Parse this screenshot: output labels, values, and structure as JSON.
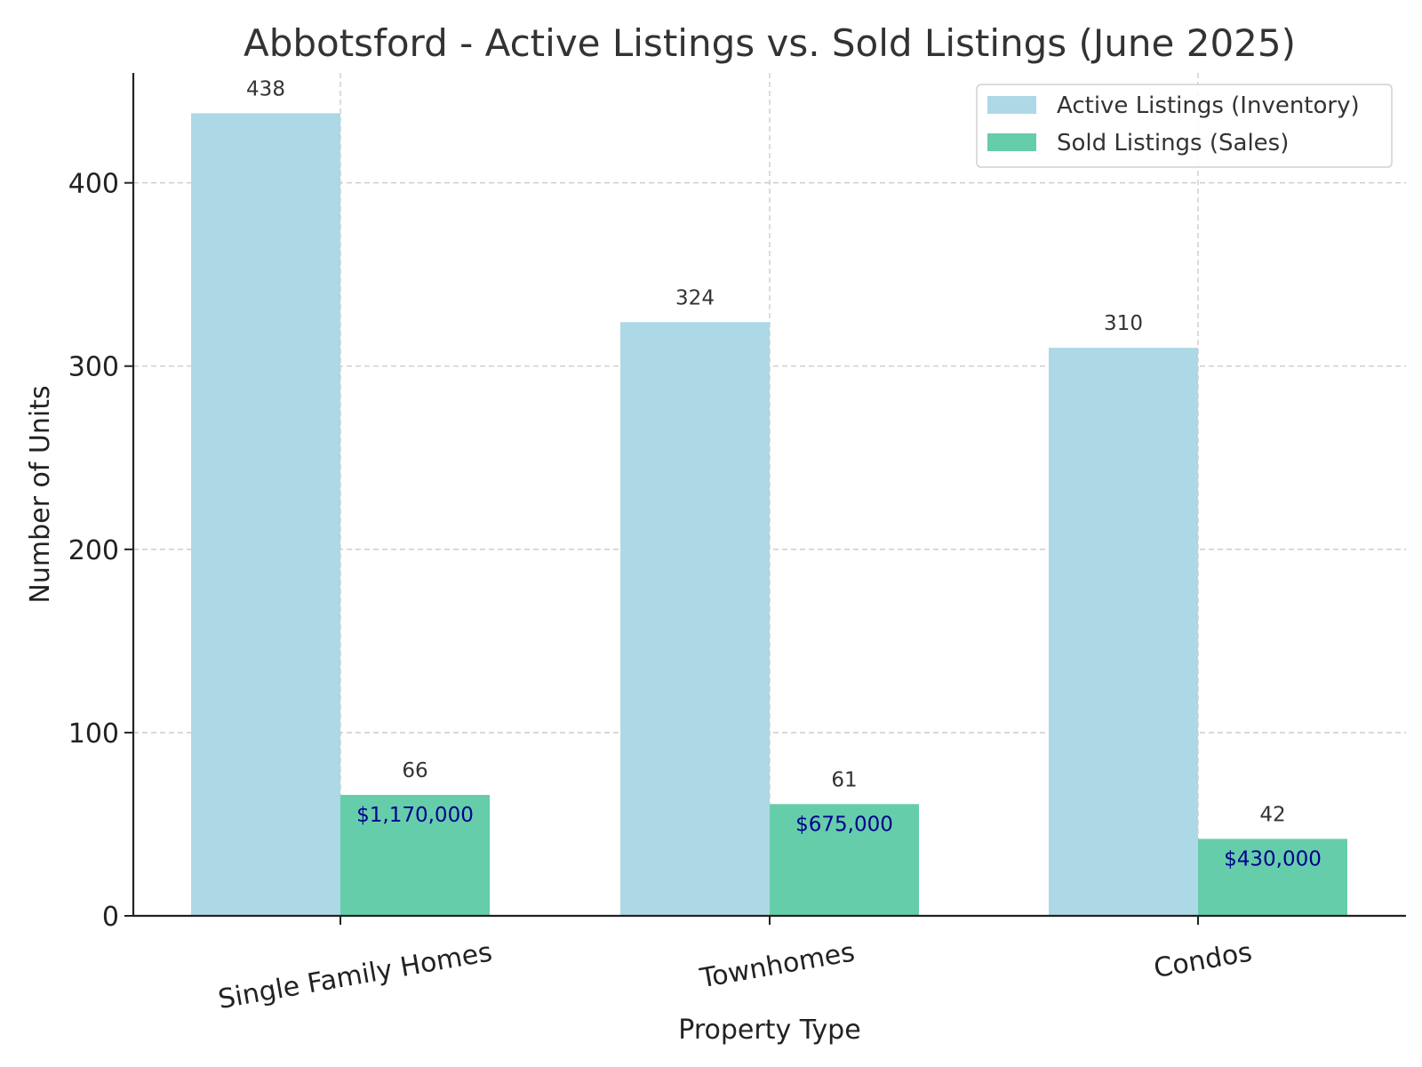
{
  "chart_data": {
    "type": "bar",
    "title": "Abbotsford - Active Listings vs. Sold Listings (June 2025)",
    "xlabel": "Property Type",
    "ylabel": "Number of Units",
    "categories": [
      "Single Family Homes",
      "Townhomes",
      "Condos"
    ],
    "series": [
      {
        "name": "Active Listings (Inventory)",
        "values": [
          438,
          324,
          310
        ],
        "color": "#add8e6"
      },
      {
        "name": "Sold Listings (Sales)",
        "values": [
          66,
          61,
          42
        ],
        "color": "#66cdaa"
      }
    ],
    "annotations": [
      "$1,170,000",
      "$675,000",
      "$430,000"
    ],
    "annotation_color": "#00008b",
    "ylim": [
      0,
      460
    ],
    "yticks": [
      0,
      100,
      200,
      300,
      400
    ],
    "grid": true,
    "legend_position": "top-right"
  }
}
